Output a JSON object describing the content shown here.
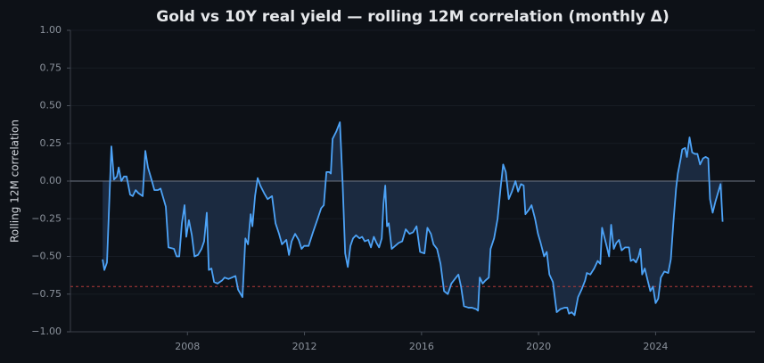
{
  "chart_data": {
    "type": "line",
    "title": "Gold vs 10Y real yield — rolling 12M correlation (monthly Δ)",
    "ylabel": "Rolling 12M correlation",
    "xlim": [
      2004.0,
      2027.4
    ],
    "xticks": [
      2008,
      2012,
      2016,
      2020,
      2024
    ],
    "ylim": [
      -1.0,
      1.0
    ],
    "yticks": [
      {
        "value": -1.0,
        "label": "−1.00"
      },
      {
        "value": -0.75,
        "label": "−0.75"
      },
      {
        "value": -0.5,
        "label": "−0.50"
      },
      {
        "value": -0.25,
        "label": "−0.25"
      },
      {
        "value": 0.0,
        "label": "0.00"
      },
      {
        "value": 0.25,
        "label": "0.25"
      },
      {
        "value": 0.5,
        "label": "0.50"
      },
      {
        "value": 0.75,
        "label": "0.75"
      },
      {
        "value": 1.0,
        "label": "1.00"
      }
    ],
    "grid": true,
    "threshold": -0.7,
    "threshold_color": "#b33a3a",
    "fill_color": "#1b2a40",
    "x": [
      2005.1,
      2005.16,
      2005.25,
      2005.4,
      2005.49,
      2005.59,
      2005.65,
      2005.74,
      2005.83,
      2005.92,
      2006.04,
      2006.13,
      2006.23,
      2006.32,
      2006.47,
      2006.56,
      2006.65,
      2006.77,
      2006.87,
      2006.99,
      2007.08,
      2007.26,
      2007.35,
      2007.54,
      2007.63,
      2007.72,
      2007.81,
      2007.9,
      2007.96,
      2008.05,
      2008.15,
      2008.24,
      2008.36,
      2008.48,
      2008.57,
      2008.66,
      2008.73,
      2008.82,
      2008.91,
      2009.03,
      2009.18,
      2009.27,
      2009.4,
      2009.52,
      2009.64,
      2009.73,
      2009.88,
      2009.98,
      2010.07,
      2010.16,
      2010.22,
      2010.31,
      2010.4,
      2010.49,
      2010.62,
      2010.74,
      2010.89,
      2011.01,
      2011.13,
      2011.23,
      2011.38,
      2011.47,
      2011.56,
      2011.68,
      2011.8,
      2011.9,
      2011.99,
      2012.14,
      2012.29,
      2012.45,
      2012.57,
      2012.66,
      2012.75,
      2012.84,
      2012.9,
      2012.96,
      2013.09,
      2013.21,
      2013.3,
      2013.39,
      2013.48,
      2013.57,
      2013.66,
      2013.76,
      2013.88,
      2013.97,
      2014.06,
      2014.18,
      2014.27,
      2014.37,
      2014.46,
      2014.55,
      2014.64,
      2014.7,
      2014.76,
      2014.82,
      2014.88,
      2014.98,
      2015.1,
      2015.22,
      2015.34,
      2015.46,
      2015.59,
      2015.71,
      2015.83,
      2015.95,
      2016.1,
      2016.2,
      2016.32,
      2016.41,
      2016.53,
      2016.65,
      2016.77,
      2016.9,
      2017.02,
      2017.14,
      2017.26,
      2017.35,
      2017.45,
      2017.6,
      2017.72,
      2017.87,
      2017.93,
      2017.99,
      2018.09,
      2018.18,
      2018.3,
      2018.36,
      2018.48,
      2018.6,
      2018.7,
      2018.79,
      2018.88,
      2018.98,
      2019.09,
      2019.21,
      2019.3,
      2019.4,
      2019.49,
      2019.55,
      2019.67,
      2019.76,
      2019.88,
      2019.98,
      2020.07,
      2020.19,
      2020.28,
      2020.37,
      2020.49,
      2020.62,
      2020.74,
      2020.89,
      2020.98,
      2021.04,
      2021.13,
      2021.23,
      2021.35,
      2021.47,
      2021.59,
      2021.65,
      2021.77,
      2021.9,
      2022.02,
      2022.11,
      2022.17,
      2022.26,
      2022.35,
      2022.41,
      2022.48,
      2022.57,
      2022.66,
      2022.75,
      2022.84,
      2022.96,
      2023.09,
      2023.15,
      2023.24,
      2023.33,
      2023.42,
      2023.48,
      2023.54,
      2023.63,
      2023.73,
      2023.82,
      2023.91,
      2024.0,
      2024.09,
      2024.18,
      2024.3,
      2024.43,
      2024.52,
      2024.61,
      2024.7,
      2024.76,
      2024.85,
      2024.91,
      2025.01,
      2025.07,
      2025.16,
      2025.25,
      2025.34,
      2025.43,
      2025.52,
      2025.62,
      2025.71,
      2025.8,
      2025.86,
      2025.95,
      2026.04,
      2026.16,
      2026.22,
      2026.29
    ],
    "series": [
      {
        "color": "#4da3f7",
        "values": [
          -0.52,
          -0.59,
          -0.54,
          0.23,
          0.01,
          0.03,
          0.09,
          0.0,
          0.03,
          0.03,
          -0.09,
          -0.1,
          -0.06,
          -0.08,
          -0.1,
          0.2,
          0.09,
          0.01,
          -0.06,
          -0.06,
          -0.05,
          -0.17,
          -0.44,
          -0.45,
          -0.5,
          -0.5,
          -0.28,
          -0.16,
          -0.37,
          -0.26,
          -0.36,
          -0.5,
          -0.49,
          -0.45,
          -0.4,
          -0.21,
          -0.59,
          -0.58,
          -0.67,
          -0.68,
          -0.66,
          -0.64,
          -0.65,
          -0.64,
          -0.63,
          -0.72,
          -0.77,
          -0.38,
          -0.42,
          -0.22,
          -0.3,
          -0.1,
          0.02,
          -0.03,
          -0.08,
          -0.12,
          -0.1,
          -0.28,
          -0.35,
          -0.42,
          -0.39,
          -0.49,
          -0.4,
          -0.35,
          -0.39,
          -0.45,
          -0.43,
          -0.43,
          -0.34,
          -0.25,
          -0.18,
          -0.16,
          0.06,
          0.06,
          0.05,
          0.28,
          0.33,
          0.39,
          0.0,
          -0.48,
          -0.57,
          -0.43,
          -0.38,
          -0.36,
          -0.38,
          -0.37,
          -0.4,
          -0.39,
          -0.44,
          -0.37,
          -0.41,
          -0.44,
          -0.38,
          -0.15,
          -0.03,
          -0.3,
          -0.28,
          -0.45,
          -0.43,
          -0.41,
          -0.4,
          -0.32,
          -0.35,
          -0.34,
          -0.3,
          -0.47,
          -0.48,
          -0.31,
          -0.35,
          -0.42,
          -0.45,
          -0.55,
          -0.73,
          -0.75,
          -0.68,
          -0.65,
          -0.62,
          -0.7,
          -0.83,
          -0.84,
          -0.84,
          -0.85,
          -0.86,
          -0.64,
          -0.68,
          -0.66,
          -0.64,
          -0.45,
          -0.38,
          -0.25,
          -0.05,
          0.11,
          0.06,
          -0.12,
          -0.07,
          0.0,
          -0.07,
          -0.02,
          -0.03,
          -0.22,
          -0.19,
          -0.16,
          -0.25,
          -0.35,
          -0.41,
          -0.5,
          -0.47,
          -0.62,
          -0.67,
          -0.87,
          -0.85,
          -0.84,
          -0.84,
          -0.88,
          -0.87,
          -0.89,
          -0.77,
          -0.72,
          -0.66,
          -0.61,
          -0.62,
          -0.58,
          -0.53,
          -0.55,
          -0.31,
          -0.38,
          -0.45,
          -0.5,
          -0.29,
          -0.45,
          -0.41,
          -0.39,
          -0.46,
          -0.44,
          -0.44,
          -0.53,
          -0.52,
          -0.54,
          -0.5,
          -0.45,
          -0.62,
          -0.58,
          -0.66,
          -0.73,
          -0.7,
          -0.81,
          -0.78,
          -0.64,
          -0.6,
          -0.61,
          -0.52,
          -0.27,
          -0.05,
          0.05,
          0.14,
          0.21,
          0.22,
          0.16,
          0.29,
          0.19,
          0.18,
          0.18,
          0.11,
          0.15,
          0.16,
          0.15,
          -0.12,
          -0.21,
          -0.14,
          -0.06,
          -0.02,
          -0.27
        ]
      }
    ]
  }
}
